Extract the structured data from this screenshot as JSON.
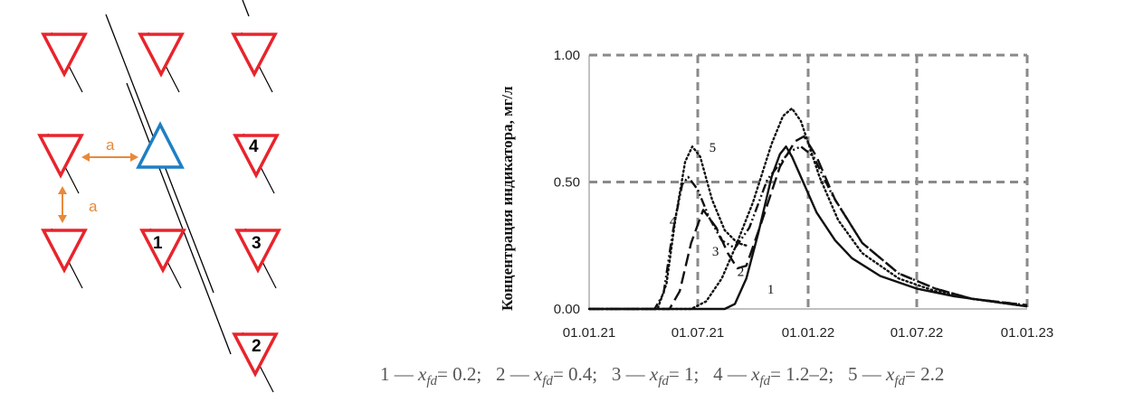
{
  "scheme": {
    "spacing_label": "a",
    "well_numbers": [
      "1",
      "2",
      "3",
      "4"
    ],
    "colors": {
      "production_well": "#e8242b",
      "injection_well": "#1f7fc4",
      "spacing_arrow": "#e8893a",
      "fracture_line": "#000000"
    },
    "icon_names": [
      "production-well-icon",
      "injection-well-icon",
      "fracture-line",
      "spacing-arrow"
    ]
  },
  "chart_data": {
    "type": "line",
    "ylabel": "Концентрация индикатора, мг/л",
    "xlabel": "",
    "title": "",
    "y_ticks": [
      "0.00",
      "0.50",
      "1.00"
    ],
    "ylim": [
      0,
      1
    ],
    "x_ticks": [
      "01.01.21",
      "01.07.21",
      "01.01.22",
      "01.07.22",
      "01.01.23"
    ],
    "x_tick_dates": [
      "2021-01-01",
      "2021-07-01",
      "2022-01-01",
      "2022-07-01",
      "2023-01-01"
    ],
    "xlim": [
      "2021-01-01",
      "2023-01-01"
    ],
    "grid": true,
    "grid_style": "dashed grey",
    "series": [
      {
        "name": "1",
        "style": "solid",
        "points": [
          [
            "2021-01-01",
            0
          ],
          [
            "2021-08-15",
            0
          ],
          [
            "2021-09-01",
            0.02
          ],
          [
            "2021-09-20",
            0.12
          ],
          [
            "2021-10-10",
            0.3
          ],
          [
            "2021-11-01",
            0.52
          ],
          [
            "2021-11-15",
            0.61
          ],
          [
            "2021-11-25",
            0.64
          ],
          [
            "2021-12-05",
            0.6
          ],
          [
            "2021-12-20",
            0.52
          ],
          [
            "2022-01-15",
            0.38
          ],
          [
            "2022-02-15",
            0.27
          ],
          [
            "2022-03-15",
            0.2
          ],
          [
            "2022-05-01",
            0.13
          ],
          [
            "2022-07-01",
            0.08
          ],
          [
            "2022-09-01",
            0.05
          ],
          [
            "2022-11-01",
            0.03
          ],
          [
            "2023-01-01",
            0.01
          ]
        ]
      },
      {
        "name": "2",
        "style": "dotted",
        "points": [
          [
            "2021-01-01",
            0
          ],
          [
            "2021-06-20",
            0
          ],
          [
            "2021-07-15",
            0.03
          ],
          [
            "2021-08-10",
            0.12
          ],
          [
            "2021-09-01",
            0.24
          ],
          [
            "2021-10-01",
            0.42
          ],
          [
            "2021-11-01",
            0.65
          ],
          [
            "2021-11-20",
            0.76
          ],
          [
            "2021-12-05",
            0.79
          ],
          [
            "2021-12-20",
            0.74
          ],
          [
            "2022-01-20",
            0.52
          ],
          [
            "2022-02-20",
            0.35
          ],
          [
            "2022-04-01",
            0.22
          ],
          [
            "2022-06-01",
            0.12
          ],
          [
            "2022-08-01",
            0.07
          ],
          [
            "2022-10-01",
            0.04
          ],
          [
            "2023-01-01",
            0.01
          ]
        ]
      },
      {
        "name": "3",
        "style": "long-dash",
        "points": [
          [
            "2021-01-01",
            0
          ],
          [
            "2021-05-15",
            0
          ],
          [
            "2021-06-01",
            0.07
          ],
          [
            "2021-06-20",
            0.26
          ],
          [
            "2021-07-10",
            0.39
          ],
          [
            "2021-08-01",
            0.32
          ],
          [
            "2021-08-20",
            0.22
          ],
          [
            "2021-09-05",
            0.16
          ],
          [
            "2021-09-20",
            0.17
          ],
          [
            "2021-10-15",
            0.34
          ],
          [
            "2021-11-15",
            0.56
          ],
          [
            "2021-12-10",
            0.66
          ],
          [
            "2021-12-25",
            0.68
          ],
          [
            "2022-01-15",
            0.6
          ],
          [
            "2022-02-15",
            0.43
          ],
          [
            "2022-04-01",
            0.26
          ],
          [
            "2022-06-01",
            0.14
          ],
          [
            "2022-08-01",
            0.08
          ],
          [
            "2022-10-01",
            0.04
          ],
          [
            "2023-01-01",
            0.015
          ]
        ]
      },
      {
        "name": "4",
        "style": "dash-dot-dot",
        "points": [
          [
            "2021-01-01",
            0
          ],
          [
            "2021-04-20",
            0
          ],
          [
            "2021-05-05",
            0.06
          ],
          [
            "2021-05-20",
            0.3
          ],
          [
            "2021-06-05",
            0.49
          ],
          [
            "2021-06-15",
            0.52
          ],
          [
            "2021-07-01",
            0.47
          ],
          [
            "2021-07-20",
            0.36
          ],
          [
            "2021-08-10",
            0.27
          ],
          [
            "2021-09-01",
            0.24
          ],
          [
            "2021-09-25",
            0.32
          ],
          [
            "2021-10-25",
            0.51
          ],
          [
            "2021-12-01",
            0.62
          ],
          [
            "2021-12-20",
            0.64
          ],
          [
            "2022-01-10",
            0.6
          ],
          [
            "2022-02-10",
            0.45
          ],
          [
            "2022-04-01",
            0.26
          ],
          [
            "2022-06-01",
            0.14
          ],
          [
            "2022-08-01",
            0.08
          ],
          [
            "2022-10-01",
            0.04
          ],
          [
            "2023-01-01",
            0.015
          ]
        ]
      },
      {
        "name": "5",
        "style": "dotted",
        "points": [
          [
            "2021-01-01",
            0
          ],
          [
            "2021-04-25",
            0
          ],
          [
            "2021-05-10",
            0.1
          ],
          [
            "2021-05-25",
            0.36
          ],
          [
            "2021-06-10",
            0.58
          ],
          [
            "2021-06-22",
            0.64
          ],
          [
            "2021-07-05",
            0.6
          ],
          [
            "2021-07-25",
            0.43
          ],
          [
            "2021-08-15",
            0.31
          ],
          [
            "2021-09-05",
            0.26
          ],
          [
            "2021-09-20",
            0.25
          ]
        ]
      }
    ],
    "curve_labels": [
      "1",
      "2",
      "3",
      "4",
      "5"
    ]
  },
  "caption": {
    "items": [
      {
        "num": "1",
        "value": "= 0.2;"
      },
      {
        "num": "2",
        "value": "= 0.4;"
      },
      {
        "num": "3",
        "value": "= 1;"
      },
      {
        "num": "4",
        "value": "= 1.2–2;"
      },
      {
        "num": "5",
        "value": "= 2.2"
      }
    ],
    "dash": "—",
    "var_main": "x",
    "var_sub": "fd"
  }
}
